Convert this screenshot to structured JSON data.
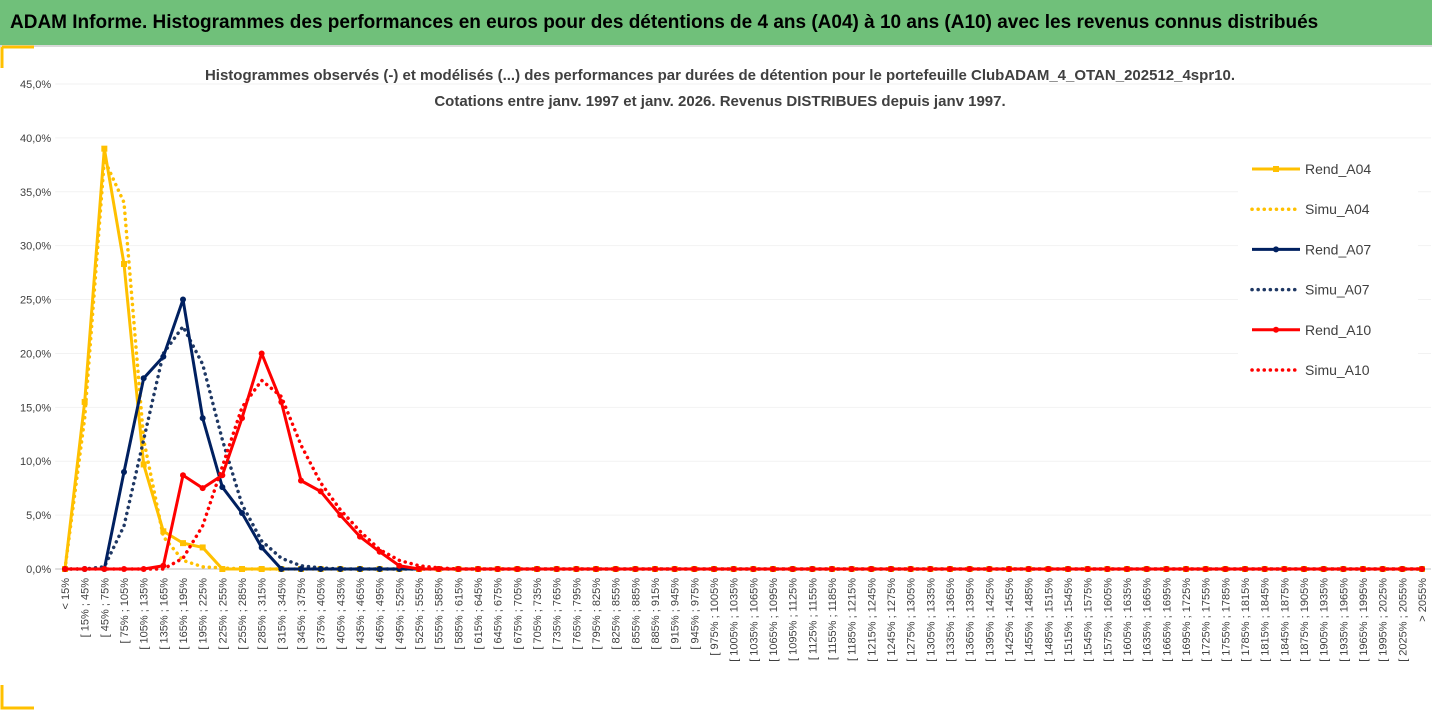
{
  "header": {
    "title": "ADAM Informe. Histogrammes des performances en euros pour des détentions de 4 ans (A04) à 10 ans (A10) avec les revenus connus distribués"
  },
  "chart_data": {
    "type": "line",
    "title": "Histogrammes observés (-) et modélisés (...) des performances par durées de détention pour le portefeuille ClubADAM_4_OTAN_202512_4spr10.",
    "subtitle": "Cotations entre janv. 1997 et janv. 2026. Revenus DISTRIBUES depuis janv 1997.",
    "categories": [
      "< 15%",
      "[ 15% ; 45%",
      "[ 45% ; 75%",
      "[ 75% ; 105%",
      "[ 105% ; 135%",
      "[ 135% ; 165%",
      "[ 165% ; 195%",
      "[ 195% ; 225%",
      "[ 225% ; 255%",
      "[ 255% ; 285%",
      "[ 285% ; 315%",
      "[ 315% ; 345%",
      "[ 345% ; 375%",
      "[ 375% ; 405%",
      "[ 405% ; 435%",
      "[ 435% ; 465%",
      "[ 465% ; 495%",
      "[ 495% ; 525%",
      "[ 525% ; 555%",
      "[ 555% ; 585%",
      "[ 585% ; 615%",
      "[ 615% ; 645%",
      "[ 645% ; 675%",
      "[ 675% ; 705%",
      "[ 705% ; 735%",
      "[ 735% ; 765%",
      "[ 765% ; 795%",
      "[ 795% ; 825%",
      "[ 825% ; 855%",
      "[ 855% ; 885%",
      "[ 885% ; 915%",
      "[ 915% ; 945%",
      "[ 945% ; 975%",
      "[ 975% ; 1005%",
      "[ 1005% ; 1035%",
      "[ 1035% ; 1065%",
      "[ 1065% ; 1095%",
      "[ 1095% ; 1125%",
      "[ 1125% ; 1155%",
      "[ 1155% ; 1185%",
      "[ 1185% ; 1215%",
      "[ 1215% ; 1245%",
      "[ 1245% ; 1275%",
      "[ 1275% ; 1305%",
      "[ 1305% ; 1335%",
      "[ 1335% ; 1365%",
      "[ 1365% ; 1395%",
      "[ 1395% ; 1425%",
      "[ 1425% ; 1455%",
      "[ 1455% ; 1485%",
      "[ 1485% ; 1515%",
      "[ 1515% ; 1545%",
      "[ 1545% ; 1575%",
      "[ 1575% ; 1605%",
      "[ 1605% ; 1635%",
      "[ 1635% ; 1665%",
      "[ 1665% ; 1695%",
      "[ 1695% ; 1725%",
      "[ 1725% ; 1755%",
      "[ 1755% ; 1785%",
      "[ 1785% ; 1815%",
      "[ 1815% ; 1845%",
      "[ 1845% ; 1875%",
      "[ 1875% ; 1905%",
      "[ 1905% ; 1935%",
      "[ 1935% ; 1965%",
      "[ 1965% ; 1995%",
      "[ 1995% ; 2025%",
      "[ 2025% ; 2055%",
      "> 2055%"
    ],
    "series": [
      {
        "name": "Rend_A04",
        "color": "#ffc000",
        "style": "solid",
        "marker": "square",
        "values": [
          0,
          15.5,
          39,
          28.3,
          9.7,
          3.5,
          2.4,
          2.0,
          0,
          0,
          0,
          0,
          0,
          0,
          0,
          0,
          0,
          0,
          0,
          0,
          0,
          0,
          0,
          0,
          0,
          0,
          0,
          0,
          0,
          0,
          0,
          0,
          0,
          0,
          0,
          0,
          0,
          0,
          0,
          0,
          0,
          0,
          0,
          0,
          0,
          0,
          0,
          0,
          0,
          0,
          0,
          0,
          0,
          0,
          0,
          0,
          0,
          0,
          0,
          0,
          0,
          0,
          0,
          0,
          0,
          0,
          0,
          0,
          0,
          0
        ]
      },
      {
        "name": "Simu_A04",
        "color": "#ffc000",
        "style": "dotted",
        "marker": "none",
        "values": [
          0,
          14,
          38,
          34,
          12,
          3,
          0.8,
          0.2,
          0.1,
          0,
          0,
          0,
          0,
          0,
          0,
          0,
          0,
          0,
          0,
          0,
          0,
          0,
          0,
          0,
          0,
          0,
          0,
          0,
          0,
          0,
          0,
          0,
          0,
          0,
          0,
          0,
          0,
          0,
          0,
          0,
          0,
          0,
          0,
          0,
          0,
          0,
          0,
          0,
          0,
          0,
          0,
          0,
          0,
          0,
          0,
          0,
          0,
          0,
          0,
          0,
          0,
          0,
          0,
          0,
          0,
          0,
          0,
          0,
          0,
          0
        ]
      },
      {
        "name": "Rend_A07",
        "color": "#002060",
        "style": "solid",
        "marker": "circle",
        "values": [
          0,
          0,
          0,
          9,
          17.7,
          19.7,
          25,
          14,
          7.6,
          5.2,
          2,
          0,
          0,
          0,
          0,
          0,
          0,
          0,
          0,
          0,
          0,
          0,
          0,
          0,
          0,
          0,
          0,
          0,
          0,
          0,
          0,
          0,
          0,
          0,
          0,
          0,
          0,
          0,
          0,
          0,
          0,
          0,
          0,
          0,
          0,
          0,
          0,
          0,
          0,
          0,
          0,
          0,
          0,
          0,
          0,
          0,
          0,
          0,
          0,
          0,
          0,
          0,
          0,
          0,
          0,
          0,
          0,
          0,
          0,
          0
        ]
      },
      {
        "name": "Simu_A07",
        "color": "#1f3864",
        "style": "dotted",
        "marker": "none",
        "values": [
          0,
          0,
          0.2,
          4,
          12,
          20,
          22.5,
          19,
          12,
          6,
          2.6,
          1,
          0.3,
          0.1,
          0,
          0,
          0,
          0,
          0,
          0,
          0,
          0,
          0,
          0,
          0,
          0,
          0,
          0,
          0,
          0,
          0,
          0,
          0,
          0,
          0,
          0,
          0,
          0,
          0,
          0,
          0,
          0,
          0,
          0,
          0,
          0,
          0,
          0,
          0,
          0,
          0,
          0,
          0,
          0,
          0,
          0,
          0,
          0,
          0,
          0,
          0,
          0,
          0,
          0,
          0,
          0,
          0,
          0,
          0,
          0
        ]
      },
      {
        "name": "Rend_A10",
        "color": "#ff0000",
        "style": "solid",
        "marker": "circle",
        "values": [
          0,
          0,
          0,
          0,
          0,
          0.3,
          8.7,
          7.5,
          8.7,
          14,
          20,
          15.5,
          8.2,
          7.2,
          5,
          3,
          1.6,
          0.3,
          0,
          0,
          0,
          0,
          0,
          0,
          0,
          0,
          0,
          0,
          0,
          0,
          0,
          0,
          0,
          0,
          0,
          0,
          0,
          0,
          0,
          0,
          0,
          0,
          0,
          0,
          0,
          0,
          0,
          0,
          0,
          0,
          0,
          0,
          0,
          0,
          0,
          0,
          0,
          0,
          0,
          0,
          0,
          0,
          0,
          0,
          0,
          0,
          0,
          0,
          0,
          0
        ]
      },
      {
        "name": "Simu_A10",
        "color": "#ff0000",
        "style": "dotted",
        "marker": "none",
        "values": [
          0,
          0,
          0,
          0,
          0,
          0,
          1,
          4,
          9.5,
          15,
          17.5,
          16,
          11.5,
          8,
          5.5,
          3.5,
          1.8,
          0.8,
          0.3,
          0.1,
          0,
          0,
          0,
          0,
          0,
          0,
          0,
          0,
          0,
          0,
          0,
          0,
          0,
          0,
          0,
          0,
          0,
          0,
          0,
          0,
          0,
          0,
          0,
          0,
          0,
          0,
          0,
          0,
          0,
          0,
          0,
          0,
          0,
          0,
          0,
          0,
          0,
          0,
          0,
          0,
          0,
          0,
          0,
          0,
          0,
          0,
          0,
          0,
          0,
          0
        ]
      }
    ],
    "draw_order": [
      1,
      0,
      3,
      2,
      5,
      4
    ],
    "ylim": [
      0,
      45
    ],
    "yticks": [
      {
        "value": 0,
        "label": "0,0%"
      },
      {
        "value": 5,
        "label": "5,0%"
      },
      {
        "value": 10,
        "label": "10,0%"
      },
      {
        "value": 15,
        "label": "15,0%"
      },
      {
        "value": 20,
        "label": "20,0%"
      },
      {
        "value": 25,
        "label": "25,0%"
      },
      {
        "value": 30,
        "label": "30,0%"
      },
      {
        "value": 35,
        "label": "35,0%"
      },
      {
        "value": 40,
        "label": "40,0%"
      },
      {
        "value": 45,
        "label": "45,0%"
      }
    ],
    "grid": true,
    "legend": "right"
  }
}
